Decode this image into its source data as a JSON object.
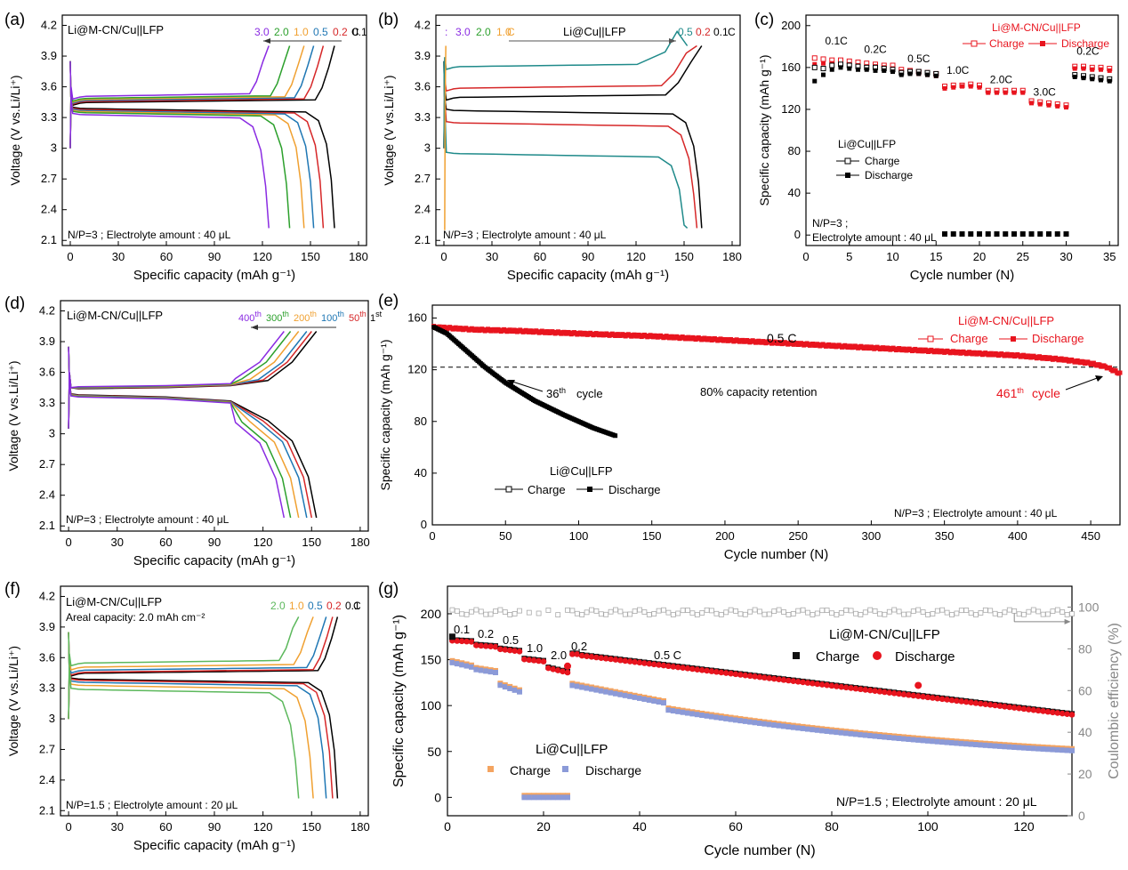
{
  "figure": {
    "type": "multi-panel electrochemistry figure"
  },
  "chart_data": [
    {
      "id": "a",
      "type": "line",
      "panel_label": "(a)",
      "title": "Li@M-CN/Cu||LFP",
      "note": "N/P=3 ; Electrolyte amount : 40 μL",
      "xlabel": "Specific capacity (mAh g⁻¹)",
      "ylabel": "Voltage (V vs.Li/Li⁺)",
      "xlim": [
        -5,
        185
      ],
      "ylim": [
        2.05,
        4.3
      ],
      "xticks": [
        0,
        30,
        60,
        90,
        120,
        150,
        180
      ],
      "yticks": [
        2.1,
        2.4,
        2.7,
        3.0,
        3.3,
        3.6,
        3.9,
        4.2
      ],
      "legend": {
        "unit": "C",
        "arrow": "left",
        "items": [
          "3.0",
          "2.0",
          "1.0",
          "0.5",
          "0.2",
          "0.1"
        ]
      },
      "series": [
        {
          "name": "0.1",
          "color": "#000000",
          "capacity": 165,
          "charge_v": 3.44,
          "discharge_v": 3.39
        },
        {
          "name": "0.2",
          "color": "#d62728",
          "capacity": 158,
          "charge_v": 3.45,
          "discharge_v": 3.38
        },
        {
          "name": "0.5",
          "color": "#1f77b4",
          "capacity": 152,
          "charge_v": 3.46,
          "discharge_v": 3.37
        },
        {
          "name": "1.0",
          "color": "#f0a030",
          "capacity": 146,
          "charge_v": 3.47,
          "discharge_v": 3.36
        },
        {
          "name": "2.0",
          "color": "#2ca02c",
          "capacity": 137,
          "charge_v": 3.48,
          "discharge_v": 3.35
        },
        {
          "name": "3.0",
          "color": "#8a2be2",
          "capacity": 124,
          "charge_v": 3.5,
          "discharge_v": 3.33
        }
      ]
    },
    {
      "id": "b",
      "type": "line",
      "panel_label": "(b)",
      "title": "Li@Cu||LFP",
      "note": "N/P=3 ; Electrolyte amount : 40 μL",
      "xlabel": "Specific capacity (mAh g⁻¹)",
      "ylabel": "Voltage (V vs.Li/Li⁺)",
      "xlim": [
        -5,
        185
      ],
      "ylim": [
        2.05,
        4.3
      ],
      "xticks": [
        0,
        30,
        60,
        90,
        120,
        150,
        180
      ],
      "yticks": [
        2.1,
        2.4,
        2.7,
        3.0,
        3.3,
        3.6,
        3.9,
        4.2
      ],
      "legend_left": {
        "unit": "C",
        "items": [
          "3.0",
          "2.0",
          "1.0"
        ]
      },
      "legend_right": {
        "unit": "C",
        "items": [
          "0.5",
          "0.2",
          "0.1"
        ]
      },
      "series": [
        {
          "name": "0.1",
          "color": "#000000",
          "capacity": 161,
          "charge_v": 3.49,
          "discharge_v": 3.37
        },
        {
          "name": "0.2",
          "color": "#d62728",
          "capacity": 158,
          "charge_v": 3.58,
          "discharge_v": 3.25
        },
        {
          "name": "0.5",
          "color": "#1f8a8a",
          "capacity": 152,
          "charge_v": 3.79,
          "discharge_v": 2.95
        }
      ]
    },
    {
      "id": "c",
      "type": "scatter",
      "panel_label": "(c)",
      "xlabel": "Cycle number (N)",
      "ylabel": "Specific capacity (mAh g⁻¹)",
      "xlim": [
        0,
        36
      ],
      "ylim": [
        -10,
        210
      ],
      "xticks": [
        0,
        5,
        10,
        15,
        20,
        25,
        30,
        35
      ],
      "yticks": [
        0,
        40,
        80,
        120,
        160,
        200
      ],
      "note_lines": [
        "N/P=3 ;",
        "Electrolyte amount : 40 μL"
      ],
      "rate_labels": [
        {
          "text": "0.1C",
          "x": 3.5,
          "y": 182
        },
        {
          "text": "0.2C",
          "x": 8,
          "y": 174
        },
        {
          "text": "0.5C",
          "x": 13,
          "y": 165
        },
        {
          "text": "1.0C",
          "x": 17.5,
          "y": 154
        },
        {
          "text": "2.0C",
          "x": 22.5,
          "y": 145
        },
        {
          "text": "3.0C",
          "x": 27.5,
          "y": 133
        },
        {
          "text": "0.2C",
          "x": 32.5,
          "y": 172
        }
      ],
      "legend_red": {
        "title": "Li@M-CN/Cu||LFP",
        "charge": "Charge",
        "discharge": "Discharge",
        "color": "#e8141e"
      },
      "legend_black": {
        "title": "Li@Cu||LFP",
        "charge": "Charge",
        "discharge": "Discharge",
        "color": "#000000"
      },
      "x": [
        1,
        2,
        3,
        4,
        5,
        6,
        7,
        8,
        9,
        10,
        11,
        12,
        13,
        14,
        15,
        16,
        17,
        18,
        19,
        20,
        21,
        22,
        23,
        24,
        25,
        26,
        27,
        28,
        29,
        30,
        31,
        32,
        33,
        34,
        35
      ],
      "series": [
        {
          "name": "Li@M-CN/Cu||LFP Charge",
          "color": "#e8141e",
          "marker": "open-square",
          "values": [
            169,
            168,
            167,
            167,
            166,
            165,
            164,
            163,
            162,
            162,
            158,
            157,
            156,
            155,
            154,
            142,
            143,
            143,
            144,
            143,
            138,
            138,
            138,
            138,
            138,
            128,
            127,
            126,
            125,
            124,
            161,
            161,
            160,
            160,
            159
          ]
        },
        {
          "name": "Li@M-CN/Cu||LFP Discharge",
          "color": "#e8141e",
          "marker": "filled-square",
          "values": [
            163,
            164,
            164,
            163,
            163,
            162,
            161,
            161,
            160,
            159,
            156,
            155,
            154,
            153,
            152,
            140,
            141,
            142,
            142,
            141,
            136,
            136,
            136,
            136,
            136,
            126,
            125,
            124,
            123,
            122,
            159,
            159,
            158,
            158,
            157
          ]
        },
        {
          "name": "Li@Cu||LFP Charge",
          "color": "#000000",
          "marker": "open-square",
          "values": [
            160,
            159,
            162,
            163,
            162,
            161,
            160,
            160,
            159,
            158,
            155,
            156,
            156,
            155,
            154,
            1,
            1,
            1,
            1,
            1,
            1,
            1,
            1,
            1,
            1,
            1,
            1,
            1,
            1,
            1,
            153,
            152,
            151,
            150,
            149
          ]
        },
        {
          "name": "Li@Cu||LFP Discharge",
          "color": "#000000",
          "marker": "filled-square",
          "values": [
            147,
            153,
            158,
            160,
            159,
            158,
            158,
            157,
            157,
            156,
            153,
            154,
            154,
            153,
            152,
            1,
            1,
            1,
            1,
            1,
            1,
            1,
            1,
            1,
            1,
            1,
            1,
            1,
            1,
            1,
            151,
            150,
            149,
            148,
            147
          ]
        }
      ]
    },
    {
      "id": "d",
      "type": "line",
      "panel_label": "(d)",
      "title": "Li@M-CN/Cu||LFP",
      "note": "N/P=3 ; Electrolyte amount : 40 μL",
      "xlabel": "Specific capacity (mAh g⁻¹)",
      "ylabel": "Voltage (V vs.Li/Li⁺)",
      "xlim": [
        -5,
        185
      ],
      "ylim": [
        2.05,
        4.3
      ],
      "xticks": [
        0,
        30,
        60,
        90,
        120,
        150,
        180
      ],
      "yticks": [
        2.1,
        2.4,
        2.7,
        3.0,
        3.3,
        3.6,
        3.9,
        4.2
      ],
      "legend": {
        "suffix": "th",
        "suffix_first": "st",
        "items": [
          "400",
          "300",
          "200",
          "100",
          "50",
          "1"
        ]
      },
      "series": [
        {
          "name": "1",
          "color": "#000000",
          "capacity": 153
        },
        {
          "name": "50",
          "color": "#d62728",
          "capacity": 150
        },
        {
          "name": "100",
          "color": "#1f77b4",
          "capacity": 147
        },
        {
          "name": "200",
          "color": "#f0a030",
          "capacity": 142
        },
        {
          "name": "300",
          "color": "#2ca02c",
          "capacity": 137
        },
        {
          "name": "400",
          "color": "#8a2be2",
          "capacity": 133
        }
      ]
    },
    {
      "id": "e",
      "type": "scatter",
      "panel_label": "(e)",
      "xlabel": "Cycle number (N)",
      "ylabel": "Specific capacity (mAh g⁻¹)",
      "xlim": [
        0,
        470
      ],
      "ylim": [
        0,
        170
      ],
      "xticks": [
        0,
        50,
        100,
        150,
        200,
        250,
        300,
        350,
        400,
        450
      ],
      "yticks": [
        0,
        40,
        80,
        120,
        160
      ],
      "rate_label": "0.5 C",
      "retention_line": 122,
      "retention_label": "80% capacity retention",
      "ann_black": {
        "num": "36",
        "sup": "th",
        "text": "cycle"
      },
      "ann_red": {
        "num": "461",
        "sup": "th",
        "text": "cycle"
      },
      "note": "N/P=3 ;  Electrolyte amount : 40 μL",
      "legend_red": {
        "title": "Li@M-CN/Cu||LFP",
        "charge": "Charge",
        "discharge": "Discharge"
      },
      "legend_black": {
        "title": "Li@Cu||LFP",
        "charge": "Charge",
        "discharge": "Discharge"
      },
      "series": [
        {
          "name": "Li@M-CN/Cu||LFP",
          "color": "#e8141e",
          "points": [
            [
              1,
              153
            ],
            [
              30,
              151
            ],
            [
              60,
              150
            ],
            [
              100,
              148
            ],
            [
              150,
              146
            ],
            [
              200,
              143
            ],
            [
              250,
              140
            ],
            [
              300,
              137
            ],
            [
              350,
              134
            ],
            [
              400,
              131
            ],
            [
              430,
              128
            ],
            [
              450,
              125
            ],
            [
              461,
              122
            ],
            [
              470,
              117
            ]
          ]
        },
        {
          "name": "Li@Cu||LFP",
          "color": "#000000",
          "points": [
            [
              1,
              153
            ],
            [
              10,
              148
            ],
            [
              20,
              138
            ],
            [
              36,
              122
            ],
            [
              50,
              110
            ],
            [
              70,
              96
            ],
            [
              90,
              85
            ],
            [
              110,
              75
            ],
            [
              125,
              69
            ]
          ]
        }
      ]
    },
    {
      "id": "f",
      "type": "line",
      "panel_label": "(f)",
      "title": "Li@M-CN/Cu||LFP",
      "subtitle": "Areal capacity: 2.0 mAh cm⁻²",
      "note": "N/P=1.5 ; Electrolyte amount : 20 μL",
      "xlabel": "Specific capacity (mAh g⁻¹)",
      "ylabel": "Voltage (V vs.Li/Li⁺)",
      "xlim": [
        -5,
        185
      ],
      "ylim": [
        2.05,
        4.3
      ],
      "xticks": [
        0,
        30,
        60,
        90,
        120,
        150,
        180
      ],
      "yticks": [
        2.1,
        2.4,
        2.7,
        3.0,
        3.3,
        3.6,
        3.9,
        4.2
      ],
      "legend": {
        "unit": "C",
        "items": [
          "2.0",
          "1.0",
          "0.5",
          "0.2",
          "0.1"
        ]
      },
      "series": [
        {
          "name": "0.1",
          "color": "#000000",
          "capacity": 166,
          "charge_v": 3.44,
          "discharge_v": 3.39
        },
        {
          "name": "0.2",
          "color": "#d62728",
          "capacity": 163,
          "charge_v": 3.45,
          "discharge_v": 3.38
        },
        {
          "name": "0.5",
          "color": "#1f77b4",
          "capacity": 159,
          "charge_v": 3.47,
          "discharge_v": 3.36
        },
        {
          "name": "1.0",
          "color": "#f0a030",
          "capacity": 151,
          "charge_v": 3.5,
          "discharge_v": 3.33
        },
        {
          "name": "2.0",
          "color": "#5cb85c",
          "capacity": 142,
          "charge_v": 3.54,
          "discharge_v": 3.29
        }
      ]
    },
    {
      "id": "g",
      "type": "scatter",
      "panel_label": "(g)",
      "xlabel": "Cycle number (N)",
      "ylabel": "Specific capacity (mAh g⁻¹)",
      "y2label": "Coulombic efficiency (%)",
      "xlim": [
        0,
        130
      ],
      "ylim": [
        -20,
        230
      ],
      "y2lim": [
        0,
        110
      ],
      "xticks": [
        0,
        20,
        40,
        60,
        80,
        100,
        120
      ],
      "yticks": [
        0,
        50,
        100,
        150,
        200
      ],
      "y2ticks": [
        0,
        20,
        40,
        60,
        80,
        100
      ],
      "rate_labels": [
        "0.1",
        "0.2",
        "0.5",
        "1.0",
        "2.0",
        "0.2",
        "0.5 C"
      ],
      "legend_top": {
        "title": "Li@M-CN/Cu||LFP",
        "charge": "Charge",
        "discharge": "Discharge"
      },
      "legend_bottom": {
        "title": "Li@Cu||LFP",
        "charge": "Charge",
        "discharge": "Discharge"
      },
      "note": "N/P=1.5 ; Electrolyte amount : 20 μL",
      "coulombic_efficiency": 100
    }
  ]
}
